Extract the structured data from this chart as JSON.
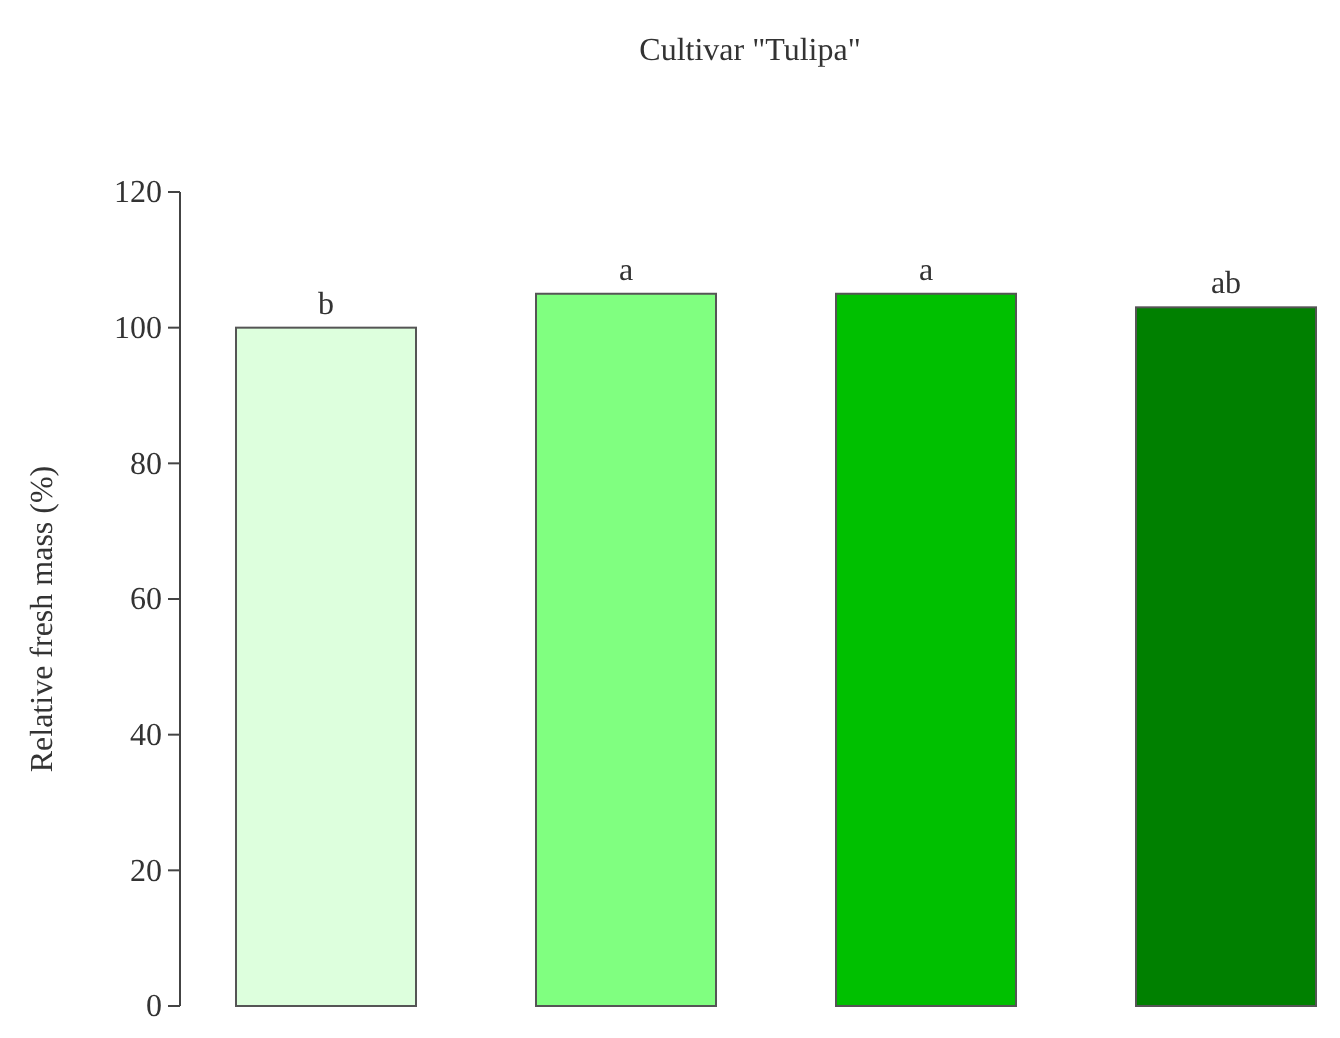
{
  "chart_data": {
    "type": "bar",
    "title": "Cultivar \"Tulipa\"",
    "ylabel": "Relative fresh mass (%)",
    "categories": [
      null,
      null,
      null,
      null
    ],
    "values": [
      100,
      105,
      105,
      103
    ],
    "colors": [
      "#ddffdd",
      "#80ff80",
      "#00c000",
      "#008000"
    ],
    "value_labels": [
      "b",
      "a",
      "a",
      "ab"
    ],
    "ylim": [
      0,
      120
    ],
    "yticks": [
      0,
      20,
      40,
      60,
      80,
      100,
      120
    ],
    "grid": false
  }
}
